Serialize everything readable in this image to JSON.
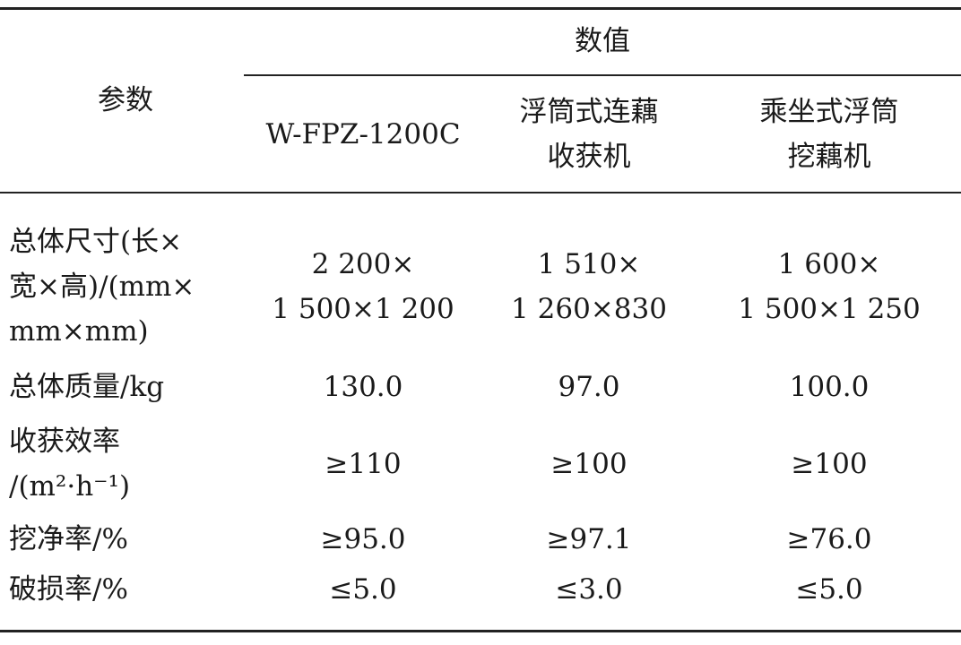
{
  "table": {
    "group_header": "数值",
    "param_header": "参数",
    "columns": [
      [
        "W-FPZ-1200C"
      ],
      [
        "浮筒式连藕",
        "收获机"
      ],
      [
        "乘坐式浮筒",
        "挖藕机"
      ]
    ],
    "rows": [
      {
        "label": [
          "总体尺寸(长×",
          "宽×高)/(mm×",
          "mm×mm)"
        ],
        "values": [
          [
            "2 200×",
            "1 500×1 200"
          ],
          [
            "1 510×",
            "1 260×830"
          ],
          [
            "1 600×",
            "1 500×1 250"
          ]
        ]
      },
      {
        "label": [
          "总体质量/kg"
        ],
        "values": [
          [
            "130.0"
          ],
          [
            "97.0"
          ],
          [
            "100.0"
          ]
        ]
      },
      {
        "label": [
          "收获效率",
          "/(m²·h⁻¹)"
        ],
        "values": [
          [
            "≥110"
          ],
          [
            "≥100"
          ],
          [
            "≥100"
          ]
        ]
      },
      {
        "label": [
          "挖净率/%"
        ],
        "values": [
          [
            "≥95.0"
          ],
          [
            "≥97.1"
          ],
          [
            "≥76.0"
          ]
        ]
      },
      {
        "label": [
          "破损率/%"
        ],
        "values": [
          [
            "≤5.0"
          ],
          [
            "≤3.0"
          ],
          [
            "≤5.0"
          ]
        ]
      }
    ]
  }
}
